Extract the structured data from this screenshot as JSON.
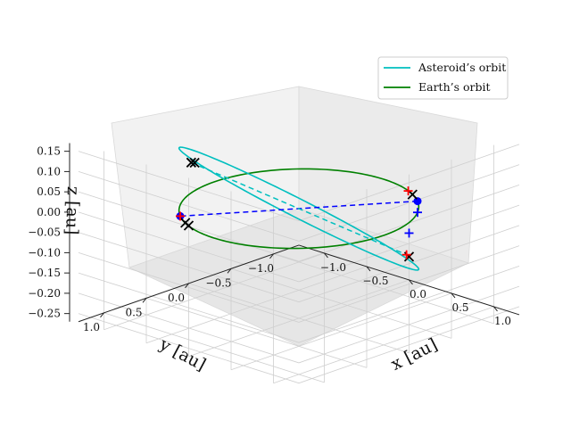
{
  "chart_data": {
    "type": "3d-line",
    "title": "",
    "xlabel": "x [au]",
    "ylabel": "y [au]",
    "zlabel": "z [au]",
    "xlim": [
      -1.3,
      1.3
    ],
    "ylim": [
      -1.3,
      1.3
    ],
    "zlim": [
      -0.27,
      0.17
    ],
    "x_ticks": [
      "−1.0",
      "−0.5",
      "0.0",
      "0.5",
      "1.0"
    ],
    "y_ticks": [
      "−1.0",
      "−0.5",
      "0.0",
      "0.5",
      "1.0"
    ],
    "z_ticks": [
      "−0.25",
      "−0.20",
      "−0.15",
      "−0.10",
      "−0.05",
      "0.00",
      "0.05",
      "0.10",
      "0.15"
    ],
    "legend": {
      "location": "upper-right",
      "entries": [
        {
          "label": "Asteroid’s orbit",
          "color": "#00bfbf"
        },
        {
          "label": "Earth’s orbit",
          "color": "#008000"
        }
      ]
    },
    "series": [
      {
        "name": "Asteroid’s orbit",
        "color": "#00bfbf",
        "style": "solid",
        "semi_major_axis": 1.0,
        "inclination_z_amplitude": 0.17
      },
      {
        "name": "Earth’s orbit",
        "color": "#008000",
        "style": "solid",
        "radius": 1.0,
        "z": 0.0
      }
    ],
    "lines": [
      {
        "name": "Earth position chord",
        "color": "#0000ff",
        "style": "dashed",
        "from": [
          0.6,
          -0.8,
          0.0
        ],
        "to": [
          -0.6,
          0.8,
          0.0
        ]
      },
      {
        "name": "Asteroid position chord",
        "color": "#00bfbf",
        "style": "dashed",
        "from": [
          -0.33,
          0.94,
          0.16
        ],
        "to": [
          0.33,
          -0.94,
          -0.16
        ]
      }
    ],
    "points": [
      {
        "name": "Earth position A",
        "marker": "dot",
        "color": "#0000ff",
        "xyz": [
          0.6,
          -0.8,
          0.0
        ]
      },
      {
        "name": "Earth position B",
        "marker": "dot",
        "color": "#0000ff",
        "xyz": [
          -0.6,
          0.8,
          0.0
        ]
      }
    ],
    "markers": [
      {
        "marker": "x",
        "color": "#000000",
        "xyz": [
          -0.33,
          0.94,
          0.16
        ]
      },
      {
        "marker": "x",
        "color": "#000000",
        "xyz": [
          -0.27,
          0.96,
          0.165
        ]
      },
      {
        "marker": "x",
        "color": "#000000",
        "xyz": [
          -0.45,
          0.89,
          0.0
        ]
      },
      {
        "marker": "x",
        "color": "#000000",
        "xyz": [
          -0.38,
          0.92,
          0.0
        ]
      },
      {
        "marker": "x",
        "color": "#000000",
        "xyz": [
          0.45,
          -0.89,
          0.0
        ]
      },
      {
        "marker": "x",
        "color": "#000000",
        "xyz": [
          0.38,
          -0.92,
          -0.16
        ]
      },
      {
        "marker": "+",
        "color": "#ff0000",
        "xyz": [
          0.36,
          -0.93,
          0.0
        ]
      },
      {
        "marker": "+",
        "color": "#ff0000",
        "xyz": [
          0.33,
          -0.94,
          -0.16
        ]
      },
      {
        "marker": "+",
        "color": "#ff0000",
        "xyz": [
          -0.6,
          0.8,
          0.0
        ]
      },
      {
        "marker": "+",
        "color": "#0000ff",
        "xyz": [
          0.8,
          -0.6,
          0.0
        ]
      },
      {
        "marker": "+",
        "color": "#0000ff",
        "xyz": [
          0.9,
          -0.4,
          -0.03
        ]
      }
    ]
  }
}
